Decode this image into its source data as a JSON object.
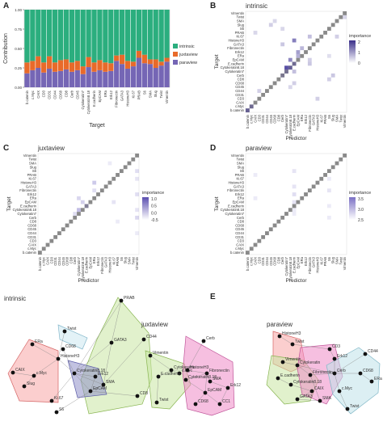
{
  "panels": {
    "A": "A",
    "B": "B",
    "C": "C",
    "D": "D",
    "E": "E"
  },
  "chart_data": [
    {
      "id": "A",
      "type": "bar",
      "stacked": true,
      "xlabel": "Target",
      "ylabel": "Contribution",
      "ylim": [
        0,
        1
      ],
      "yticks": [
        "0.00",
        "0.25",
        "0.50",
        "0.75",
        "1.00"
      ],
      "categories": [
        "b.catenin",
        "c.Myc",
        "CAIX",
        "CD3",
        "CD31",
        "CD44",
        "CD68",
        "CD8",
        "Cerb",
        "CD45",
        "Cytokeratin7",
        "Cytokeratin8.18",
        "E.cadherin",
        "EpCAM",
        "ERa",
        "Erk12",
        "Fibronectin",
        "GATA3",
        "HistoneH3",
        "Ki.67",
        "PRAB",
        "S6",
        "SMA",
        "Slug",
        "Twist",
        "Vimentin"
      ],
      "legend": [
        "intrinsic",
        "juxtaview",
        "paraview"
      ],
      "legend_position": "right",
      "colors": {
        "intrinsic": "#2bae7e",
        "juxtaview": "#e86a2a",
        "paraview": "#7566b5"
      },
      "series": [
        {
          "name": "paraview",
          "values": [
            0.18,
            0.22,
            0.25,
            0.19,
            0.24,
            0.2,
            0.21,
            0.23,
            0.2,
            0.22,
            0.17,
            0.26,
            0.2,
            0.22,
            0.2,
            0.21,
            0.34,
            0.3,
            0.24,
            0.27,
            0.38,
            0.31,
            0.3,
            0.25,
            0.28,
            0.33
          ]
        },
        {
          "name": "juxtaview",
          "values": [
            0.14,
            0.12,
            0.15,
            0.13,
            0.16,
            0.12,
            0.14,
            0.13,
            0.12,
            0.12,
            0.1,
            0.13,
            0.12,
            0.13,
            0.12,
            0.1,
            0.07,
            0.12,
            0.1,
            0.06,
            0.09,
            0.11,
            0.06,
            0.11,
            0.05,
            0.05
          ]
        },
        {
          "name": "intrinsic",
          "values": [
            0.68,
            0.66,
            0.6,
            0.68,
            0.6,
            0.68,
            0.65,
            0.64,
            0.68,
            0.66,
            0.73,
            0.61,
            0.68,
            0.65,
            0.68,
            0.69,
            0.59,
            0.58,
            0.66,
            0.67,
            0.53,
            0.58,
            0.64,
            0.64,
            0.67,
            0.62
          ]
        }
      ]
    },
    {
      "id": "B",
      "type": "heatmap",
      "title": "intrinsic",
      "xlabel": "Predictor",
      "ylabel": "Target",
      "legend_title": "importance",
      "legend_ticks": [
        "2",
        "1",
        "0"
      ],
      "rows": [
        "Vimentin",
        "Twist",
        "SMA",
        "Slug",
        "S6",
        "PRAB",
        "Ki.67",
        "HistoneH3",
        "GATA3",
        "Fibronectin",
        "Erk12",
        "ERa",
        "EpCAM",
        "E.cadherin",
        "Cytokeratin8.18",
        "Cytokeratin7",
        "Cerb",
        "CD8",
        "CD68",
        "CD45",
        "CD44",
        "CD31",
        "CD3",
        "CAIX",
        "c.Myc",
        "b.catenin"
      ],
      "cells": [
        [
          3,
          6,
          0.6
        ],
        [
          2,
          7,
          0.5
        ],
        [
          7,
          12,
          1.6
        ],
        [
          9,
          14,
          0.9
        ],
        [
          10,
          13,
          1.2
        ],
        [
          11,
          13,
          1.0
        ],
        [
          12,
          11,
          1.5
        ],
        [
          13,
          12,
          1.0
        ],
        [
          14,
          10,
          2.2
        ],
        [
          14,
          11,
          1.4
        ],
        [
          15,
          10,
          0.8
        ],
        [
          16,
          9,
          0.6
        ],
        [
          4,
          9,
          0.5
        ],
        [
          6,
          16,
          0.8
        ],
        [
          8,
          9,
          0.7
        ],
        [
          12,
          16,
          0.6
        ],
        [
          5,
          2,
          0.5
        ],
        [
          16,
          22,
          0.7
        ],
        [
          17,
          21,
          0.6
        ],
        [
          20,
          3,
          0.6
        ],
        [
          22,
          18,
          0.6
        ],
        [
          24,
          1,
          1.0
        ],
        [
          25,
          0,
          1.3
        ],
        [
          1,
          25,
          0.5
        ],
        [
          6,
          23,
          0.6
        ],
        [
          11,
          21,
          0.4
        ],
        [
          18,
          12,
          0.6
        ],
        [
          19,
          11,
          0.5
        ],
        [
          13,
          16,
          0.7
        ],
        [
          15,
          12,
          0.8
        ]
      ]
    },
    {
      "id": "C",
      "type": "heatmap",
      "title": "juxtaview",
      "xlabel": "Predictor",
      "ylabel": "Target",
      "legend_title": "importance",
      "legend_ticks": [
        "1.0",
        "0.5",
        "0.0",
        "-0.5"
      ],
      "rows": [
        "Vimentin",
        "Twist",
        "SMA",
        "Slug",
        "S6",
        "PRAB",
        "Ki.67",
        "HistoneH3",
        "GATA3",
        "Fibronectin",
        "Erk12",
        "ERa",
        "EpCAM",
        "E.cadherin",
        "Cytokeratin8.18",
        "Cytokeratin7",
        "Cerb",
        "CD8",
        "CD68",
        "CD45",
        "CD44",
        "CD31",
        "CD3",
        "CAIX",
        "c.Myc",
        "b.catenin"
      ],
      "cells": [
        [
          7,
          14,
          0.8
        ],
        [
          9,
          14,
          0.5
        ],
        [
          11,
          10,
          0.6
        ],
        [
          12,
          11,
          0.7
        ],
        [
          14,
          10,
          1.0
        ],
        [
          13,
          12,
          0.6
        ],
        [
          15,
          9,
          0.5
        ],
        [
          4,
          25,
          0.5
        ],
        [
          6,
          25,
          0.4
        ],
        [
          10,
          25,
          0.5
        ],
        [
          14,
          25,
          0.4
        ],
        [
          16,
          25,
          0.6
        ],
        [
          20,
          25,
          0.3
        ],
        [
          2,
          18,
          0.3
        ],
        [
          12,
          19,
          0.4
        ],
        [
          17,
          20,
          0.3
        ]
      ]
    },
    {
      "id": "D",
      "type": "heatmap",
      "title": "paraview",
      "xlabel": "Predictor",
      "ylabel": "Target",
      "legend_title": "importance",
      "legend_ticks": [
        "3.5",
        "3.0",
        "2.5"
      ],
      "rows": [
        "Vimentin",
        "Twist",
        "SMA",
        "Slug",
        "S6",
        "PRAB",
        "Ki.67",
        "HistoneH3",
        "GATA3",
        "Fibronectin",
        "Erk12",
        "ERa",
        "EpCAM",
        "E.cadherin",
        "Cytokeratin8.18",
        "Cytokeratin7",
        "Cerb",
        "CD8",
        "CD68",
        "CD45",
        "CD44",
        "CD31",
        "CD3",
        "CAIX",
        "c.Myc",
        "b.catenin"
      ],
      "cells": [
        [
          4,
          12,
          0.4
        ],
        [
          8,
          12,
          0.4
        ],
        [
          10,
          12,
          0.5
        ],
        [
          12,
          12,
          0.4
        ],
        [
          14,
          12,
          0.3
        ],
        [
          6,
          21,
          0.3
        ],
        [
          9,
          21,
          0.4
        ],
        [
          13,
          21,
          0.3
        ],
        [
          5,
          2,
          0.3
        ],
        [
          11,
          2,
          0.3
        ],
        [
          15,
          12,
          0.3
        ],
        [
          16,
          21,
          0.3
        ]
      ]
    }
  ],
  "networks": [
    {
      "title": "intrinsic",
      "nodes": [
        "PRAB",
        "CD44",
        "GATA3",
        "Twist",
        "ERa",
        "CD68",
        "CAIX",
        "c.Myc",
        "HistoneH3",
        "Cytokeratin8.18",
        "Erk12",
        "Slug",
        "EpCAM",
        "SMA",
        "Ki.67",
        "CD8",
        "S6"
      ]
    },
    {
      "title": "juxtaview",
      "nodes": [
        "Cerb",
        "c.Myc",
        "Vimentin",
        "Cytokeratin",
        "HistoneH3",
        "Fibronectin",
        "E.cadherin",
        "Cytokeratin8.18",
        "SMA",
        "EpCAM",
        "Erk12",
        "Twist",
        "CD68",
        "CC1"
      ]
    },
    {
      "title": "paraview",
      "nodes": [
        "HistoneH3",
        "Twist",
        "CD3",
        "CD44",
        "Vimentin",
        "Cytokeratin",
        "E.cadherin",
        "Fibronectin",
        "Erk12",
        "Cerb",
        "CD68",
        "ERa",
        "Cytokeratin8.18",
        "CAIX",
        "c.Myc",
        "Twist",
        "GATA3",
        "SMA"
      ]
    }
  ]
}
